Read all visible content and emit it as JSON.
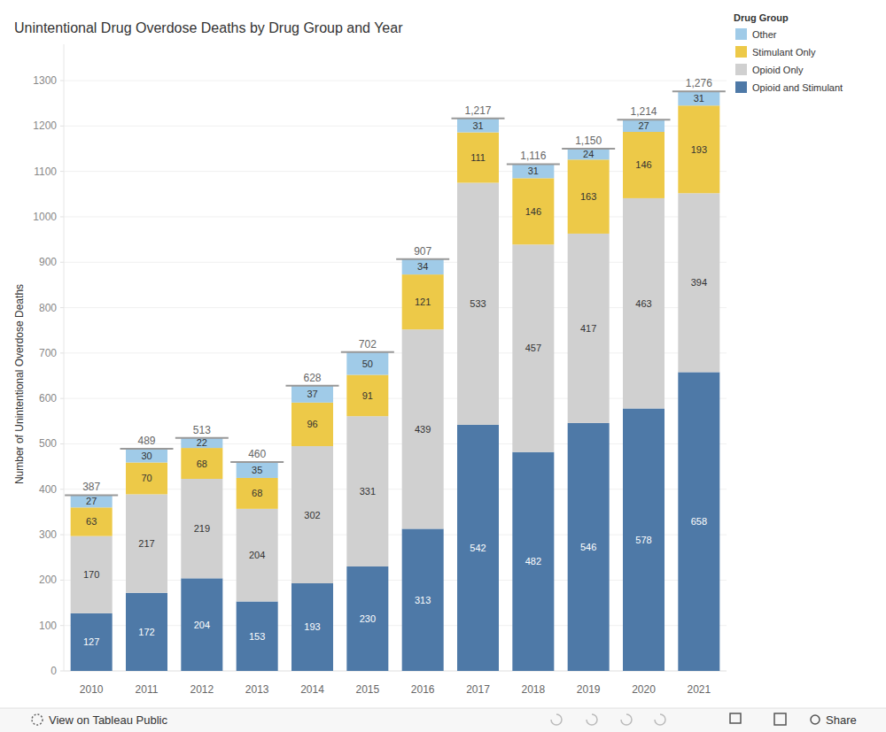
{
  "chart_data": {
    "type": "bar",
    "title": "Unintentional Drug Overdose Deaths by Drug Group and Year",
    "y_label": "Number of Unintentional Overdose Deaths",
    "legend_title": "Drug Group",
    "legend": "right",
    "stacked": true,
    "data_labels": true,
    "grid": true,
    "categories": [
      "2010",
      "2011",
      "2012",
      "2013",
      "2014",
      "2015",
      "2016",
      "2017",
      "2018",
      "2019",
      "2020",
      "2021"
    ],
    "series": [
      {
        "name": "Opioid and Stimulant",
        "color": "#4e79a7",
        "values": [
          127,
          172,
          204,
          153,
          193,
          230,
          313,
          542,
          482,
          546,
          578,
          658
        ]
      },
      {
        "name": "Opioid Only",
        "color": "#d0d0d0",
        "values": [
          170,
          217,
          219,
          204,
          302,
          331,
          439,
          533,
          457,
          417,
          463,
          394
        ]
      },
      {
        "name": "Stimulant Only",
        "color": "#edc948",
        "values": [
          63,
          70,
          68,
          68,
          96,
          91,
          121,
          111,
          146,
          163,
          146,
          193
        ]
      },
      {
        "name": "Other",
        "color": "#a0cbe8",
        "values": [
          27,
          30,
          22,
          35,
          37,
          50,
          34,
          31,
          31,
          24,
          27,
          31
        ]
      }
    ],
    "totals": {
      "values": [
        387,
        489,
        513,
        460,
        628,
        702,
        907,
        1217,
        1116,
        1150,
        1214,
        1276
      ],
      "value_labels": [
        "387",
        "489",
        "513",
        "460",
        "628",
        "702",
        "907",
        "1,217",
        "1,116",
        "1,150",
        "1,214",
        "1,276"
      ]
    },
    "ylim": [
      0,
      1380
    ],
    "yticks": [
      0,
      100,
      200,
      300,
      400,
      500,
      600,
      700,
      800,
      900,
      1000,
      1100,
      1200,
      1300
    ]
  },
  "footer": {
    "link": "View on Tableau Public",
    "share": "Share"
  }
}
